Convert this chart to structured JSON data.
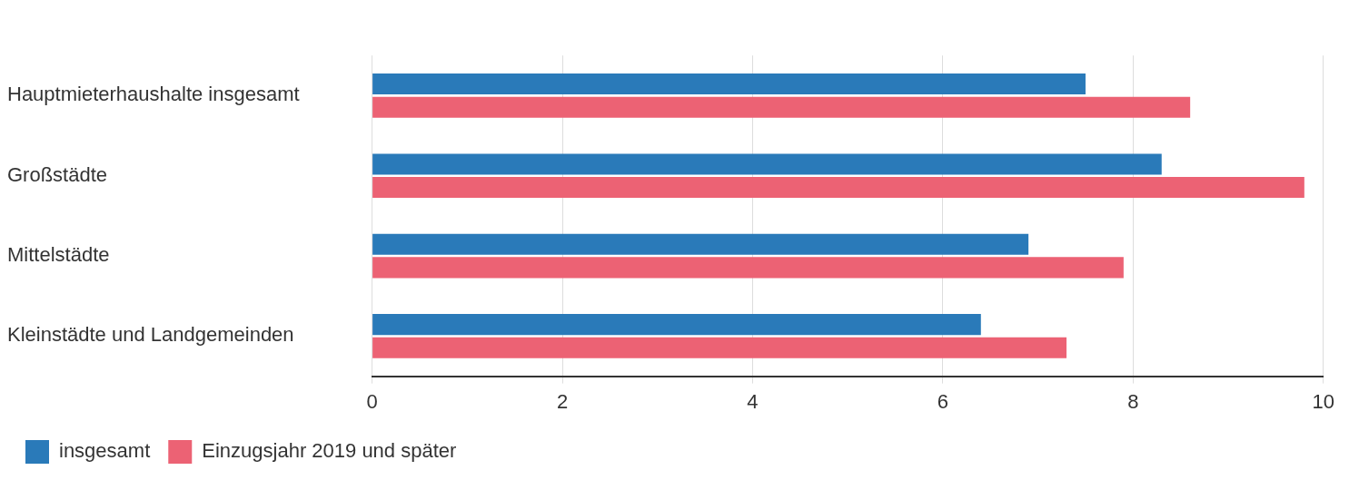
{
  "chart_data": {
    "type": "bar",
    "orientation": "horizontal",
    "categories": [
      "Hauptmieterhaushalte insgesamt",
      "Großstädte",
      "Mittelstädte",
      "Kleinstädte und Landgemeinden"
    ],
    "series": [
      {
        "name": "insgesamt",
        "color": "#2a7ab9",
        "values": [
          7.5,
          8.3,
          6.9,
          6.4
        ]
      },
      {
        "name": "Einzugsjahr 2019 und später",
        "color": "#ec6274",
        "values": [
          8.6,
          9.8,
          7.9,
          7.3
        ]
      }
    ],
    "xlim": [
      0,
      10
    ],
    "xticks": [
      0,
      2,
      4,
      6,
      8,
      10
    ],
    "grid": "x",
    "legend": "bottom left"
  }
}
